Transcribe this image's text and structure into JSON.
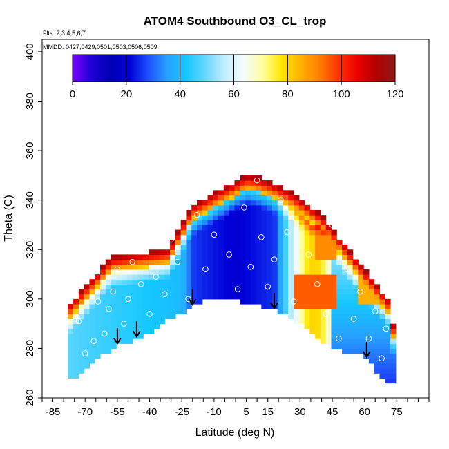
{
  "chart_data": {
    "type": "heatmap",
    "title": "ATOM4 Southbound O3_CL_trop",
    "notes": {
      "flights": "Flts: 2,3,4,5,6,7",
      "dates": "MMDD: 0427,0429,0501,0503,0506,0509"
    },
    "xlabel": "Latitude (deg N)",
    "ylabel": "Theta (C)",
    "xlim": [
      -90,
      90
    ],
    "ylim": [
      260,
      405
    ],
    "x_ticks": [
      -85,
      -70,
      -55,
      -40,
      -25,
      -10,
      5,
      15,
      30,
      45,
      60,
      75
    ],
    "y_ticks": [
      260,
      280,
      300,
      320,
      340,
      360,
      380,
      400
    ],
    "colorbar": {
      "range": [
        0,
        120
      ],
      "ticks": [
        0,
        20,
        40,
        60,
        80,
        100,
        120
      ],
      "colors": [
        "#7a00ff",
        "#1e00d6",
        "#0000b4",
        "#0000d8",
        "#1e50ff",
        "#28a0ff",
        "#14c8ff",
        "#6ad6ff",
        "#bfeeff",
        "#f4fbff",
        "#ffffa0",
        "#ffe700",
        "#ffb200",
        "#ff7f00",
        "#ff3300",
        "#ee0000",
        "#b30000",
        "#8b1a1a"
      ]
    },
    "lower_boundary": [
      {
        "lat": -73,
        "theta": 268
      },
      {
        "lat": -68,
        "theta": 274
      },
      {
        "lat": -62,
        "theta": 277
      },
      {
        "lat": -55,
        "theta": 281
      },
      {
        "lat": -48,
        "theta": 283
      },
      {
        "lat": -40,
        "theta": 286
      },
      {
        "lat": -32,
        "theta": 291
      },
      {
        "lat": -24,
        "theta": 295
      },
      {
        "lat": -17,
        "theta": 298
      },
      {
        "lat": -10,
        "theta": 301
      },
      {
        "lat": -2,
        "theta": 300
      },
      {
        "lat": 8,
        "theta": 298
      },
      {
        "lat": 16,
        "theta": 296
      },
      {
        "lat": 24,
        "theta": 293
      },
      {
        "lat": 33,
        "theta": 288
      },
      {
        "lat": 42,
        "theta": 282
      },
      {
        "lat": 50,
        "theta": 279
      },
      {
        "lat": 58,
        "theta": 278
      },
      {
        "lat": 64,
        "theta": 273
      },
      {
        "lat": 70,
        "theta": 266
      }
    ],
    "arrows_lat": [
      -55,
      -46,
      -20,
      18,
      61
    ],
    "observations": [
      {
        "lat": -73,
        "theta": 291
      },
      {
        "lat": -70,
        "theta": 278
      },
      {
        "lat": -66,
        "theta": 283
      },
      {
        "lat": -64,
        "theta": 299
      },
      {
        "lat": -61,
        "theta": 286
      },
      {
        "lat": -59,
        "theta": 296
      },
      {
        "lat": -57,
        "theta": 303
      },
      {
        "lat": -55,
        "theta": 312
      },
      {
        "lat": -52,
        "theta": 290
      },
      {
        "lat": -50,
        "theta": 300
      },
      {
        "lat": -48,
        "theta": 315
      },
      {
        "lat": -44,
        "theta": 306
      },
      {
        "lat": -40,
        "theta": 294
      },
      {
        "lat": -37,
        "theta": 309
      },
      {
        "lat": -33,
        "theta": 302
      },
      {
        "lat": -30,
        "theta": 324
      },
      {
        "lat": -27,
        "theta": 315
      },
      {
        "lat": -22,
        "theta": 300
      },
      {
        "lat": -18,
        "theta": 334
      },
      {
        "lat": -14,
        "theta": 312
      },
      {
        "lat": -10,
        "theta": 326
      },
      {
        "lat": -6,
        "theta": 349
      },
      {
        "lat": -3,
        "theta": 318
      },
      {
        "lat": 1,
        "theta": 304
      },
      {
        "lat": 4,
        "theta": 337
      },
      {
        "lat": 7,
        "theta": 313
      },
      {
        "lat": 10,
        "theta": 348
      },
      {
        "lat": 12,
        "theta": 325
      },
      {
        "lat": 15,
        "theta": 305
      },
      {
        "lat": 18,
        "theta": 316
      },
      {
        "lat": 21,
        "theta": 340
      },
      {
        "lat": 24,
        "theta": 327
      },
      {
        "lat": 27,
        "theta": 299
      },
      {
        "lat": 30,
        "theta": 289
      },
      {
        "lat": 34,
        "theta": 318
      },
      {
        "lat": 38,
        "theta": 306
      },
      {
        "lat": 42,
        "theta": 294
      },
      {
        "lat": 45,
        "theta": 330
      },
      {
        "lat": 48,
        "theta": 284
      },
      {
        "lat": 52,
        "theta": 312
      },
      {
        "lat": 55,
        "theta": 292
      },
      {
        "lat": 58,
        "theta": 303
      },
      {
        "lat": 62,
        "theta": 284
      },
      {
        "lat": 65,
        "theta": 295
      },
      {
        "lat": 68,
        "theta": 276
      },
      {
        "lat": 70,
        "theta": 288
      }
    ]
  }
}
